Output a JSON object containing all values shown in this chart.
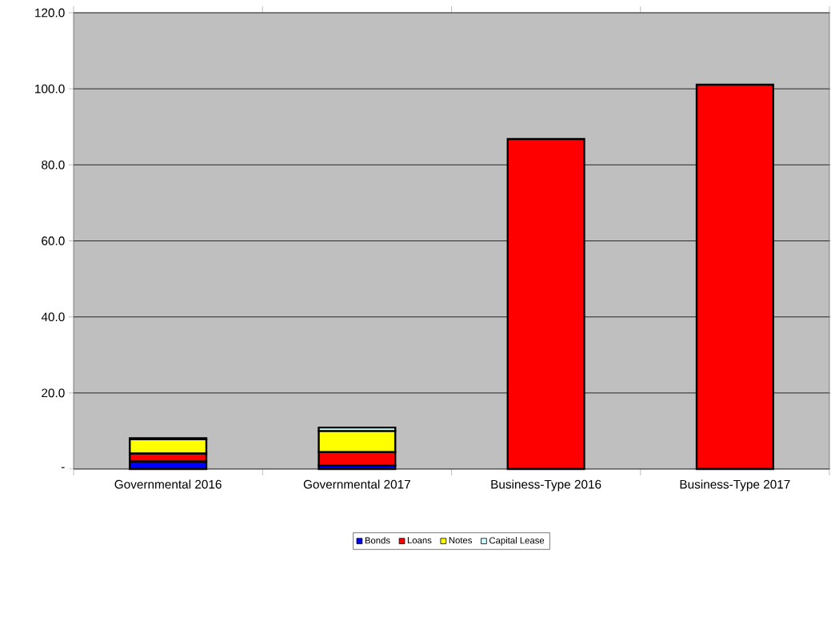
{
  "chart_data": {
    "type": "bar",
    "stacked": true,
    "categories": [
      "Governmental 2016",
      "Governmental 2017",
      "Business-Type 2016",
      "Business-Type 2017"
    ],
    "series": [
      {
        "name": "Bonds",
        "color": "#0000ff",
        "values": [
          2.0,
          0.9,
          null,
          null
        ]
      },
      {
        "name": "Loans",
        "color": "#ff0000",
        "values": [
          2.1,
          3.6,
          86.8,
          101.1
        ]
      },
      {
        "name": "Notes",
        "color": "#ffff00",
        "values": [
          3.7,
          5.5,
          null,
          null
        ]
      },
      {
        "name": "Capital Lease",
        "color": "#ccffff",
        "values": [
          0.3,
          0.9,
          null,
          null
        ]
      }
    ],
    "ylim": [
      0,
      120
    ],
    "yticks": [
      {
        "value": 0,
        "label": "-"
      },
      {
        "value": 20,
        "label": "20.0"
      },
      {
        "value": 40,
        "label": "40.0"
      },
      {
        "value": 60,
        "label": "60.0"
      },
      {
        "value": 80,
        "label": "80.0"
      },
      {
        "value": 100,
        "label": "100.0"
      },
      {
        "value": 120,
        "label": "120.0"
      }
    ],
    "grid": "y",
    "legend": "bottom"
  }
}
